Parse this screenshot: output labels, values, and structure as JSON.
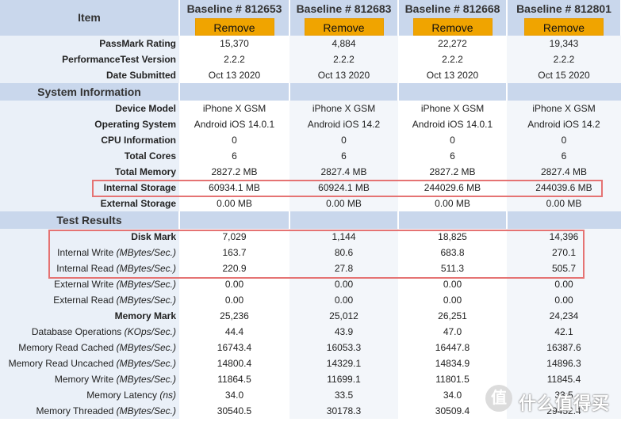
{
  "header": {
    "item_label": "Item",
    "baselines": [
      "Baseline # 812653",
      "Baseline # 812683",
      "Baseline # 812668",
      "Baseline # 812801"
    ],
    "remove_label": "Remove"
  },
  "summary_rows": [
    {
      "label": "PassMark Rating",
      "values": [
        "15,370",
        "4,884",
        "22,272",
        "19,343"
      ]
    },
    {
      "label": "PerformanceTest Version",
      "values": [
        "2.2.2",
        "2.2.2",
        "2.2.2",
        "2.2.2"
      ]
    },
    {
      "label": "Date Submitted",
      "values": [
        "Oct 13 2020",
        "Oct 13 2020",
        "Oct 13 2020",
        "Oct 15 2020"
      ]
    }
  ],
  "system_section": {
    "title": "System Information",
    "rows": [
      {
        "label": "Device Model",
        "values": [
          "iPhone X GSM",
          "iPhone X GSM",
          "iPhone X GSM",
          "iPhone X GSM"
        ]
      },
      {
        "label": "Operating System",
        "values": [
          "Android iOS 14.0.1",
          "Android iOS 14.2",
          "Android iOS 14.0.1",
          "Android iOS 14.2"
        ]
      },
      {
        "label": "CPU Information",
        "values": [
          "0",
          "0",
          "0",
          "0"
        ]
      },
      {
        "label": "Total Cores",
        "values": [
          "6",
          "6",
          "6",
          "6"
        ]
      },
      {
        "label": "Total Memory",
        "values": [
          "2827.2 MB",
          "2827.4 MB",
          "2827.2 MB",
          "2827.4 MB"
        ]
      },
      {
        "label": "Internal Storage",
        "values": [
          "60934.1 MB",
          "60924.1 MB",
          "244029.6 MB",
          "244039.6 MB"
        ]
      },
      {
        "label": "External Storage",
        "values": [
          "0.00 MB",
          "0.00 MB",
          "0.00 MB",
          "0.00 MB"
        ]
      }
    ]
  },
  "test_section": {
    "title": "Test Results",
    "rows": [
      {
        "label": "Disk Mark",
        "unit": "",
        "bold": true,
        "values": [
          "7,029",
          "1,144",
          "18,825",
          "14,396"
        ]
      },
      {
        "label": "Internal Write ",
        "unit": "(MBytes/Sec.)",
        "bold": false,
        "values": [
          "163.7",
          "80.6",
          "683.8",
          "270.1"
        ]
      },
      {
        "label": "Internal Read ",
        "unit": "(MBytes/Sec.)",
        "bold": false,
        "values": [
          "220.9",
          "27.8",
          "511.3",
          "505.7"
        ]
      },
      {
        "label": "External Write ",
        "unit": "(MBytes/Sec.)",
        "bold": false,
        "values": [
          "0.00",
          "0.00",
          "0.00",
          "0.00"
        ]
      },
      {
        "label": "External Read ",
        "unit": "(MBytes/Sec.)",
        "bold": false,
        "values": [
          "0.00",
          "0.00",
          "0.00",
          "0.00"
        ]
      },
      {
        "label": "Memory Mark",
        "unit": "",
        "bold": true,
        "values": [
          "25,236",
          "25,012",
          "26,251",
          "24,234"
        ]
      },
      {
        "label": "Database Operations ",
        "unit": "(KOps/Sec.)",
        "bold": false,
        "values": [
          "44.4",
          "43.9",
          "47.0",
          "42.1"
        ]
      },
      {
        "label": "Memory Read Cached ",
        "unit": "(MBytes/Sec.)",
        "bold": false,
        "values": [
          "16743.4",
          "16053.3",
          "16447.8",
          "16387.6"
        ]
      },
      {
        "label": "Memory Read Uncached ",
        "unit": "(MBytes/Sec.)",
        "bold": false,
        "values": [
          "14800.4",
          "14329.1",
          "14834.9",
          "14896.3"
        ]
      },
      {
        "label": "Memory Write ",
        "unit": "(MBytes/Sec.)",
        "bold": false,
        "values": [
          "11864.5",
          "11699.1",
          "11801.5",
          "11845.4"
        ]
      },
      {
        "label": "Memory Latency ",
        "unit": "(ns)",
        "bold": false,
        "values": [
          "34.0",
          "33.5",
          "34.0",
          "33.5"
        ]
      },
      {
        "label": "Memory Threaded ",
        "unit": "(MBytes/Sec.)",
        "bold": false,
        "values": [
          "30540.5",
          "30178.3",
          "30509.4",
          "29452.4"
        ]
      }
    ]
  },
  "watermark": {
    "text": "什么值得买"
  }
}
